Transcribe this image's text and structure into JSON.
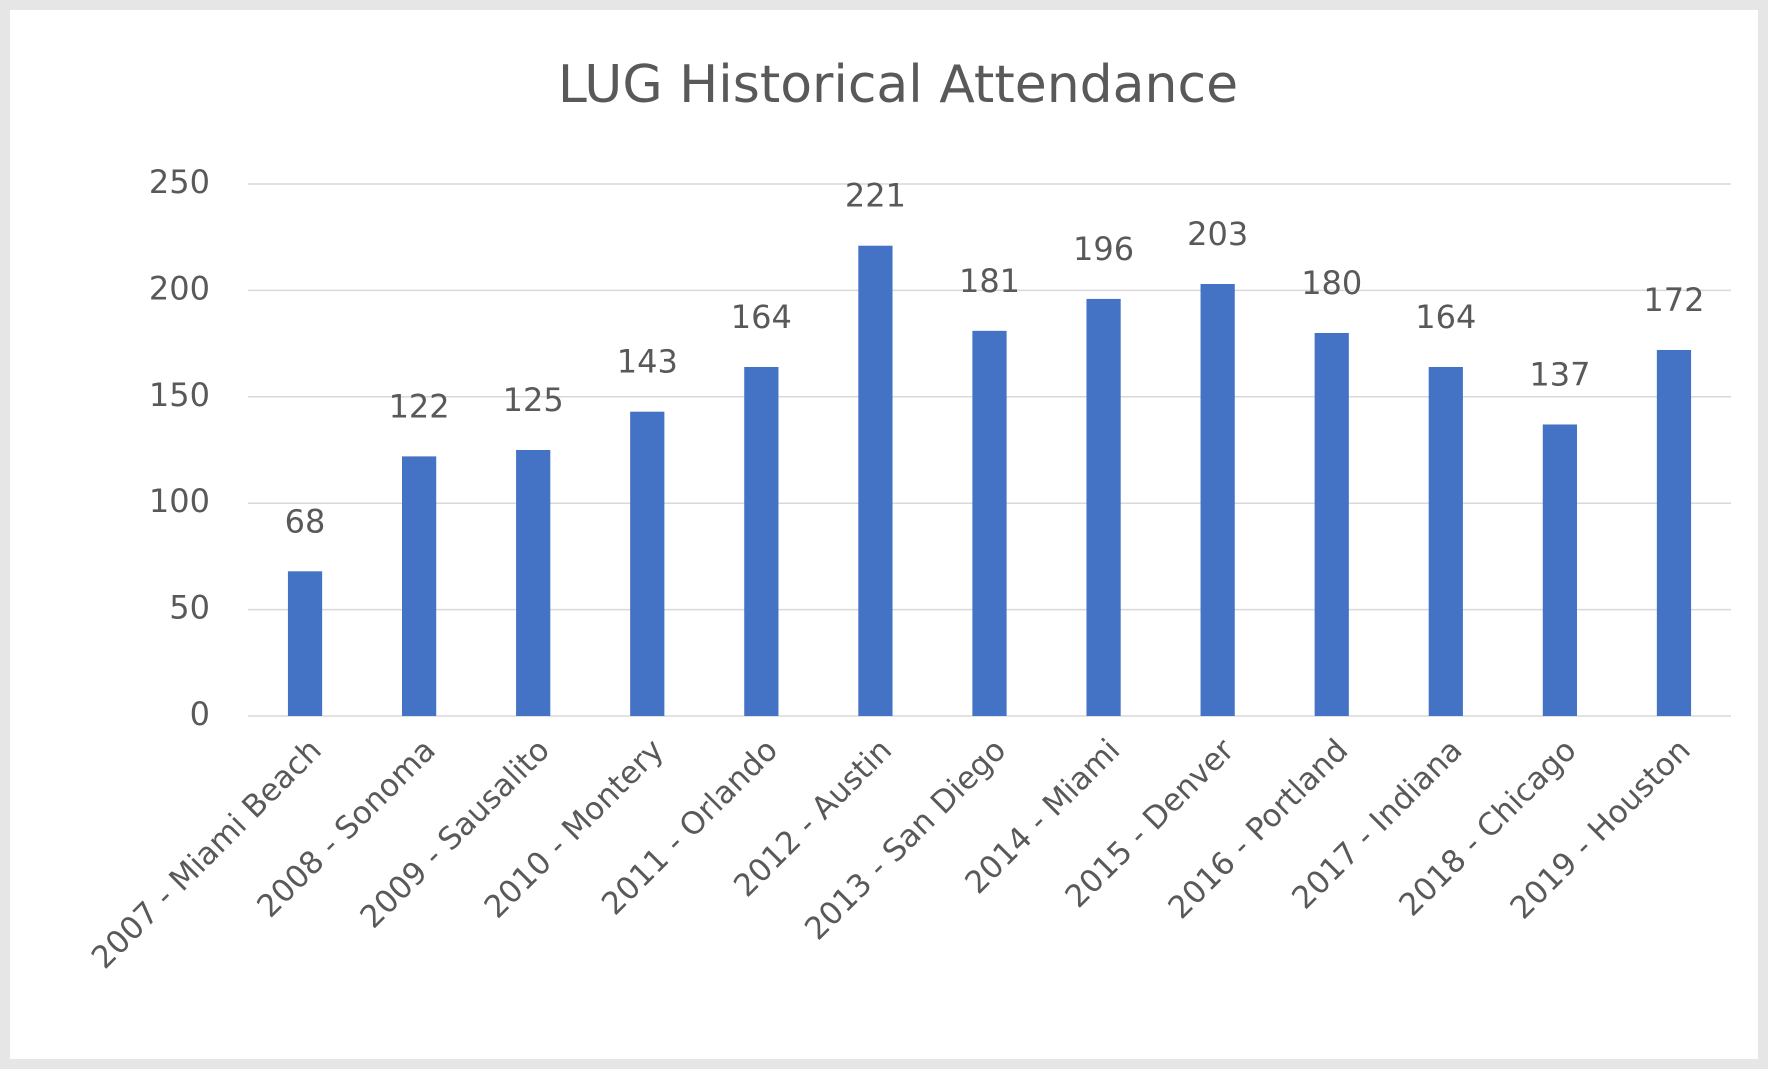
{
  "chart_data": {
    "type": "bar",
    "title": "LUG Historical Attendance",
    "categories": [
      "2007 - Miami Beach",
      "2008 - Sonoma",
      "2009 - Sausalito",
      "2010 - Montery",
      "2011 - Orlando",
      "2012 - Austin",
      "2013 - San Diego",
      "2014 - Miami",
      "2015 - Denver",
      "2016 - Portland",
      "2017 - Indiana",
      "2018 - Chicago",
      "2019 - Houston"
    ],
    "values": [
      68,
      122,
      125,
      143,
      164,
      221,
      181,
      196,
      203,
      180,
      164,
      137,
      172
    ],
    "color": "#4472c4",
    "ylim": [
      0,
      250
    ],
    "yticks": [
      0,
      50,
      100,
      150,
      200,
      250
    ],
    "grid": true
  }
}
